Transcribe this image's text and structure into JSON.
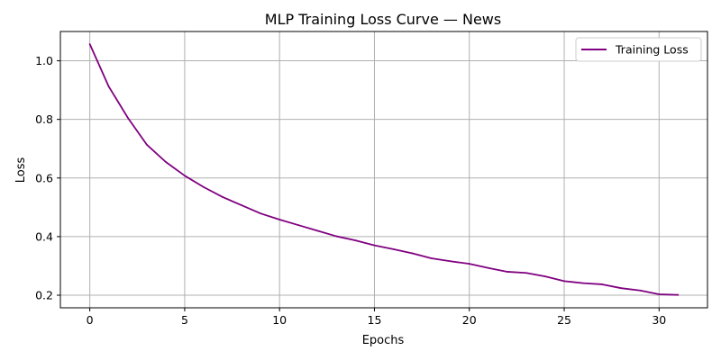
{
  "chart_data": {
    "type": "line",
    "title": "MLP Training Loss Curve — News",
    "xlabel": "Epochs",
    "ylabel": "Loss",
    "xlim": [
      -1.55,
      32.55
    ],
    "ylim": [
      0.157,
      1.1
    ],
    "xticks": [
      0,
      5,
      10,
      15,
      20,
      25,
      30
    ],
    "yticks": [
      0.2,
      0.4,
      0.6,
      0.8,
      1.0
    ],
    "ytick_labels": [
      "0.2",
      "0.4",
      "0.6",
      "0.8",
      "1.0"
    ],
    "grid": true,
    "legend_position": "top-right",
    "series": [
      {
        "name": "Training Loss",
        "color": "#800080",
        "x": [
          0,
          1,
          2,
          3,
          4,
          5,
          6,
          7,
          8,
          9,
          10,
          11,
          12,
          13,
          14,
          15,
          16,
          17,
          18,
          19,
          20,
          21,
          22,
          23,
          24,
          25,
          26,
          27,
          28,
          29,
          30,
          31
        ],
        "values": [
          1.057,
          0.912,
          0.806,
          0.714,
          0.655,
          0.608,
          0.569,
          0.535,
          0.507,
          0.479,
          0.458,
          0.439,
          0.42,
          0.401,
          0.387,
          0.37,
          0.357,
          0.343,
          0.326,
          0.316,
          0.307,
          0.293,
          0.28,
          0.276,
          0.264,
          0.248,
          0.241,
          0.237,
          0.224,
          0.216,
          0.203,
          0.201
        ]
      }
    ]
  }
}
